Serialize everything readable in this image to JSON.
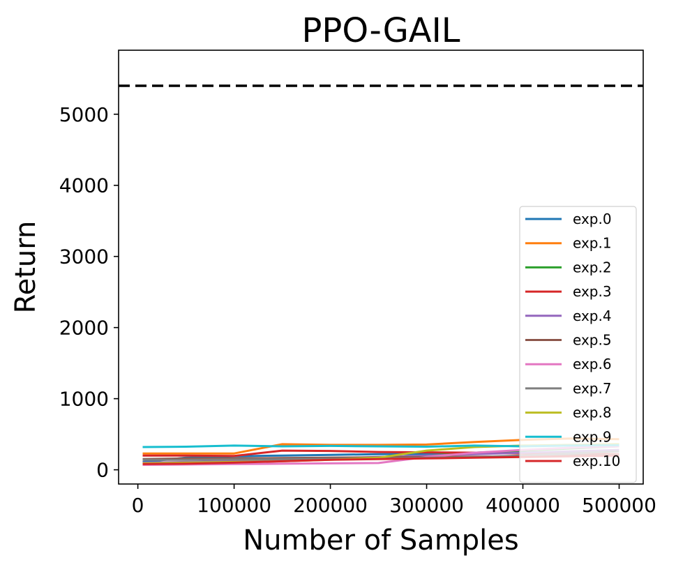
{
  "chart_data": {
    "type": "line",
    "title": "PPO-GAIL",
    "xlabel": "Number of Samples",
    "ylabel": "Return",
    "xlim": [
      -20000,
      525000
    ],
    "ylim": [
      -200,
      5900
    ],
    "xticks": [
      0,
      100000,
      200000,
      300000,
      400000,
      500000
    ],
    "xtick_labels": [
      "0",
      "100000",
      "200000",
      "300000",
      "400000",
      "500000"
    ],
    "yticks": [
      0,
      1000,
      2000,
      3000,
      4000,
      5000
    ],
    "ytick_labels": [
      "0",
      "1000",
      "2000",
      "3000",
      "4000",
      "5000"
    ],
    "grid": false,
    "legend_position": "lower-right",
    "reference_line": {
      "y": 5400,
      "style": "dashed",
      "color": "#000000"
    },
    "x": [
      5000,
      50000,
      100000,
      150000,
      200000,
      250000,
      300000,
      350000,
      400000,
      450000,
      500000
    ],
    "series": [
      {
        "name": "exp.0",
        "color": "#1f77b4",
        "values": [
          110,
          170,
          190,
          200,
          210,
          220,
          225,
          230,
          240,
          250,
          260
        ]
      },
      {
        "name": "exp.1",
        "color": "#ff7f0e",
        "values": [
          230,
          230,
          230,
          360,
          350,
          350,
          355,
          390,
          420,
          440,
          430
        ]
      },
      {
        "name": "exp.2",
        "color": "#2ca02c",
        "values": [
          90,
          100,
          110,
          130,
          150,
          170,
          200,
          240,
          270,
          300,
          330
        ]
      },
      {
        "name": "exp.3",
        "color": "#d62728",
        "values": [
          200,
          200,
          195,
          270,
          265,
          250,
          245,
          240,
          230,
          225,
          220
        ]
      },
      {
        "name": "exp.4",
        "color": "#9467bd",
        "values": [
          100,
          110,
          120,
          140,
          160,
          180,
          200,
          220,
          240,
          260,
          280
        ]
      },
      {
        "name": "exp.5",
        "color": "#8c564b",
        "values": [
          150,
          160,
          160,
          165,
          170,
          175,
          180,
          185,
          190,
          200,
          210
        ]
      },
      {
        "name": "exp.6",
        "color": "#e377c2",
        "values": [
          70,
          75,
          80,
          85,
          90,
          95,
          180,
          240,
          280,
          310,
          330
        ]
      },
      {
        "name": "exp.7",
        "color": "#7f7f7f",
        "values": [
          140,
          140,
          145,
          150,
          155,
          160,
          170,
          180,
          200,
          230,
          260
        ]
      },
      {
        "name": "exp.8",
        "color": "#bcbd22",
        "values": [
          90,
          100,
          110,
          120,
          140,
          170,
          270,
          320,
          340,
          350,
          360
        ]
      },
      {
        "name": "exp.9",
        "color": "#17becf",
        "values": [
          320,
          325,
          340,
          330,
          335,
          330,
          325,
          340,
          330,
          340,
          345
        ]
      },
      {
        "name": "exp.10",
        "color": "#d62728",
        "values": [
          80,
          85,
          100,
          120,
          140,
          150,
          160,
          170,
          180,
          190,
          200
        ]
      }
    ]
  }
}
